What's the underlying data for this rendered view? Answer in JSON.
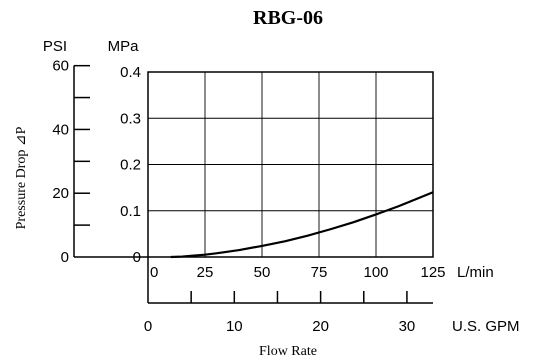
{
  "chart_data": {
    "type": "line",
    "title": "RBG-06",
    "ylabel": "Pressure Drop ⊿P",
    "xlabel": "Flow Rate",
    "x_axis_primary": {
      "unit": "L/min",
      "ticks": [
        0,
        25,
        50,
        75,
        100,
        125
      ],
      "tick_labels": [
        "0",
        "25",
        "50",
        "75",
        "100",
        "125"
      ],
      "range": [
        0,
        125
      ]
    },
    "x_axis_secondary": {
      "unit": "U.S. GPM",
      "ticks": [
        0,
        10,
        20,
        30
      ],
      "tick_labels": [
        "0",
        "10",
        "20",
        "30"
      ],
      "minor_ticks": [
        5,
        15,
        25
      ]
    },
    "y_axis_primary": {
      "unit": "MPa",
      "ticks": [
        0,
        0.1,
        0.2,
        0.3,
        0.4
      ],
      "tick_labels": [
        "0",
        "0.1",
        "0.2",
        "0.3",
        "0.4"
      ],
      "range": [
        0,
        0.4
      ]
    },
    "y_axis_secondary": {
      "unit": "PSI",
      "ticks": [
        0,
        20,
        40,
        60
      ],
      "tick_labels": [
        "0",
        "20",
        "40",
        "60"
      ],
      "minor_ticks": [
        10,
        30,
        50
      ]
    },
    "grid": true,
    "series": [
      {
        "x": [
          10,
          15,
          20,
          25,
          30,
          40,
          50,
          60,
          70,
          80,
          90,
          100,
          110,
          120,
          125
        ],
        "y": [
          0,
          0.001,
          0.003,
          0.005,
          0.008,
          0.015,
          0.024,
          0.034,
          0.046,
          0.06,
          0.075,
          0.092,
          0.11,
          0.13,
          0.14
        ]
      }
    ]
  }
}
